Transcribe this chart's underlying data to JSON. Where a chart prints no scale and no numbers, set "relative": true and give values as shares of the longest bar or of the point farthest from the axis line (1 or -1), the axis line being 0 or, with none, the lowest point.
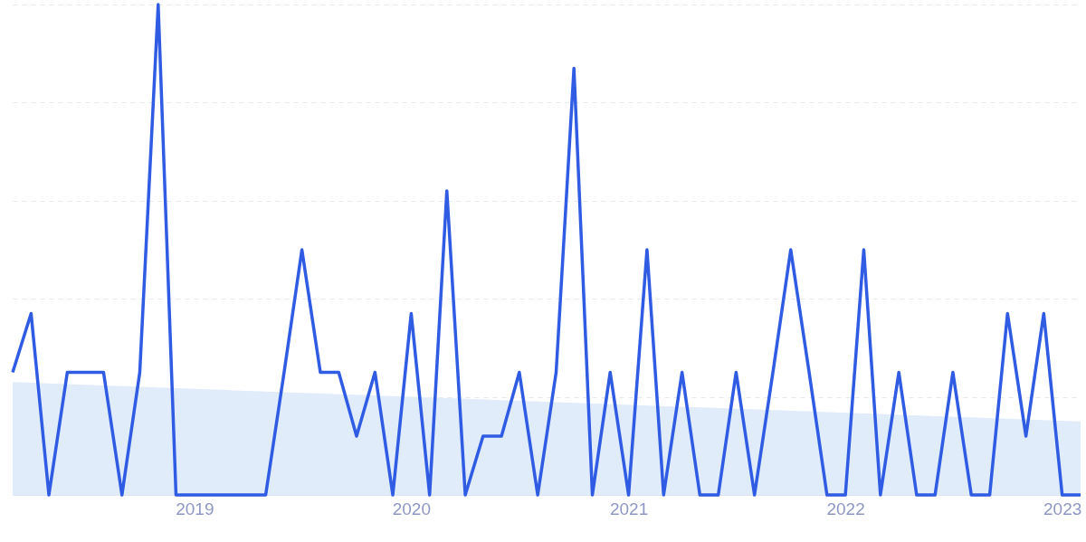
{
  "chart_data": {
    "type": "line",
    "relative": true,
    "tick_labels": "x",
    "grid": "y",
    "marker": "none",
    "line_style": "solid",
    "x": [
      "2018-03",
      "2018-04",
      "2018-05",
      "2018-06",
      "2018-07",
      "2018-08",
      "2018-09",
      "2018-10",
      "2018-11",
      "2018-12",
      "2019-01",
      "2019-02",
      "2019-03",
      "2019-04",
      "2019-05",
      "2019-06",
      "2019-07",
      "2019-08",
      "2019-09",
      "2019-10",
      "2019-11",
      "2019-12",
      "2020-01",
      "2020-02",
      "2020-03",
      "2020-04",
      "2020-05",
      "2020-06",
      "2020-07",
      "2020-08",
      "2020-09",
      "2020-10",
      "2020-11",
      "2020-12",
      "2021-01",
      "2021-02",
      "2021-03",
      "2021-04",
      "2021-05",
      "2021-06",
      "2021-07",
      "2021-08",
      "2021-09",
      "2021-10",
      "2021-11",
      "2021-12",
      "2022-01",
      "2022-02",
      "2022-03",
      "2022-04",
      "2022-05",
      "2022-06",
      "2022-07",
      "2022-08",
      "2022-09",
      "2022-10",
      "2022-11",
      "2022-12",
      "2023-01",
      "2023-02"
    ],
    "xlim": [
      "2018-03",
      "2023-02"
    ],
    "xticks": [
      "2019",
      "2020",
      "2021",
      "2022",
      "2023"
    ],
    "series": [
      {
        "type": "area",
        "color": "#e1ecfb",
        "x": [
          "2018-03",
          "2023-02"
        ],
        "values": [
          0.23,
          0.15
        ]
      },
      {
        "color": "#2f5ce3",
        "values": [
          0.25,
          0.37,
          0,
          0.25,
          0.25,
          0.25,
          0,
          0.25,
          1,
          0,
          0,
          0,
          0,
          0,
          0,
          0.25,
          0.5,
          0.25,
          0.25,
          0.12,
          0.25,
          0,
          0.37,
          0,
          0.62,
          0,
          0.12,
          0.12,
          0.25,
          0,
          0.25,
          0.87,
          0,
          0.25,
          0,
          0.5,
          0,
          0.25,
          0,
          0,
          0.25,
          0,
          0.25,
          0.5,
          0.25,
          0,
          0,
          0.5,
          0,
          0.25,
          0,
          0,
          0.25,
          0,
          0,
          0.37,
          0.12,
          0.37,
          0,
          0
        ]
      }
    ]
  }
}
